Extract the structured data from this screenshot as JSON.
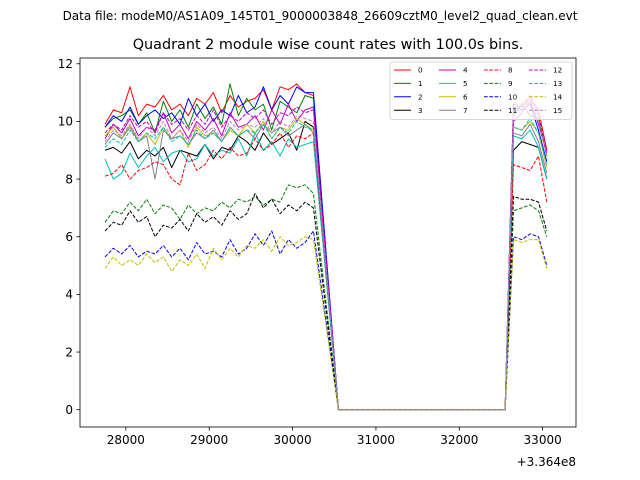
{
  "figure": {
    "suptitle": "Data file: modeM0/AS1A09_145T01_9000003848_26609cztM0_level2_quad_clean.evt"
  },
  "chart_data": {
    "type": "line",
    "title": "Quadrant 2 module wise count rates with 100.0s bins.",
    "xlabel": "",
    "ylabel": "",
    "x_offset_label": "+3.364e8",
    "x_offset": 336400000,
    "xlim": [
      27450,
      33400
    ],
    "ylim": [
      -0.6,
      12.2
    ],
    "xticks": [
      28000,
      29000,
      30000,
      31000,
      32000,
      33000
    ],
    "xtick_labels": [
      "28000",
      "29000",
      "30000",
      "31000",
      "32000",
      "33000"
    ],
    "yticks": [
      0,
      2,
      4,
      6,
      8,
      10,
      12
    ],
    "ytick_labels": [
      "0",
      "2",
      "4",
      "6",
      "8",
      "10",
      "12"
    ],
    "legend_position": "top-right",
    "legend_ncol": 4,
    "bin_size_s": 100,
    "x_start": 27750,
    "gap": {
      "start": 30550,
      "end": 32550,
      "value": 0
    },
    "series": [
      {
        "name": "0",
        "color": "#ff0000",
        "dash": "solid",
        "pre": [
          9.9,
          10.4,
          10.3,
          11.2,
          10.2,
          10.6,
          10.5,
          10.9,
          10.4,
          10.6,
          10.2,
          10.8,
          10.6,
          11.0,
          10.3,
          10.9,
          10.5,
          10.7,
          10.8,
          11.1,
          10.4,
          11.2,
          11.1,
          11.3,
          11.0,
          10.9
        ],
        "post": [
          10.6,
          10.5,
          10.8,
          10.4,
          9.0
        ]
      },
      {
        "name": "1",
        "color": "#008000",
        "dash": "solid",
        "pre": [
          9.8,
          10.1,
          10.2,
          10.4,
          9.9,
          10.3,
          9.6,
          10.7,
          10.0,
          10.4,
          9.8,
          10.6,
          10.1,
          10.5,
          9.9,
          11.3,
          10.2,
          10.8,
          10.4,
          10.6,
          9.7,
          10.7,
          10.5,
          10.3,
          10.9,
          10.8
        ],
        "post": [
          10.2,
          10.6,
          10.2,
          10.1,
          8.8
        ]
      },
      {
        "name": "2",
        "color": "#0000ff",
        "dash": "solid",
        "pre": [
          9.8,
          10.2,
          10.0,
          10.5,
          9.9,
          10.2,
          10.4,
          10.1,
          10.3,
          9.9,
          10.8,
          10.2,
          10.6,
          10.0,
          10.4,
          10.2,
          10.9,
          10.3,
          10.5,
          11.2,
          10.4,
          10.9,
          10.6,
          11.2,
          11.0,
          11.0
        ],
        "post": [
          10.5,
          10.4,
          10.6,
          9.7,
          8.6
        ]
      },
      {
        "name": "3",
        "color": "#000000",
        "dash": "solid",
        "pre": [
          9.0,
          9.1,
          8.9,
          9.3,
          8.7,
          9.0,
          8.8,
          9.1,
          8.4,
          9.0,
          8.9,
          8.8,
          9.2,
          8.7,
          9.1,
          9.0,
          9.5,
          9.3,
          9.0,
          9.6,
          9.2,
          9.4,
          9.6,
          9.0,
          10.0,
          9.8
        ],
        "post": [
          9.0,
          9.3,
          9.2,
          9.1,
          8.0
        ]
      },
      {
        "name": "4",
        "color": "#bf00bf",
        "dash": "solid",
        "pre": [
          9.4,
          9.9,
          9.6,
          10.1,
          9.5,
          9.8,
          9.7,
          10.3,
          9.6,
          9.9,
          9.4,
          10.0,
          9.7,
          10.1,
          9.5,
          10.3,
          9.8,
          9.9,
          10.2,
          9.7,
          10.4,
          9.9,
          10.6,
          10.0,
          10.4,
          10.5
        ],
        "post": [
          10.0,
          10.3,
          10.7,
          9.9,
          8.9
        ]
      },
      {
        "name": "5",
        "color": "#00bfbf",
        "dash": "solid",
        "pre": [
          8.7,
          8.0,
          8.2,
          8.9,
          8.4,
          8.8,
          9.1,
          8.6,
          8.9,
          9.0,
          8.6,
          8.7,
          9.2,
          8.8,
          9.0,
          8.9,
          9.4,
          8.8,
          9.6,
          9.0,
          9.3,
          8.8,
          9.4,
          9.1,
          9.2,
          9.3
        ],
        "post": [
          9.5,
          9.4,
          9.7,
          9.1,
          8.0
        ]
      },
      {
        "name": "6",
        "color": "#bfbf00",
        "dash": "solid",
        "pre": [
          9.5,
          9.8,
          9.4,
          9.9,
          9.3,
          9.6,
          9.2,
          9.8,
          9.4,
          9.7,
          9.1,
          9.8,
          9.5,
          9.6,
          9.3,
          9.7,
          9.5,
          9.9,
          9.6,
          10.0,
          9.4,
          9.8,
          9.7,
          10.1,
          9.9,
          9.7
        ],
        "post": [
          9.8,
          9.7,
          10.0,
          9.6,
          8.4
        ]
      },
      {
        "name": "7",
        "color": "#808080",
        "dash": "solid",
        "pre": [
          9.2,
          9.6,
          9.4,
          9.8,
          9.3,
          9.5,
          8.0,
          9.7,
          9.4,
          9.5,
          9.2,
          9.6,
          9.4,
          9.7,
          9.3,
          9.8,
          9.5,
          9.7,
          9.4,
          9.9,
          9.6,
          9.8,
          9.5,
          9.7,
          9.9,
          9.6
        ],
        "post": [
          9.6,
          9.5,
          9.9,
          9.3,
          8.2
        ]
      },
      {
        "name": "8",
        "color": "#ff0000",
        "dash": "dashed",
        "pre": [
          8.1,
          8.2,
          8.5,
          8.0,
          8.3,
          8.4,
          8.6,
          8.5,
          8.0,
          7.8,
          8.9,
          8.3,
          8.5,
          9.0,
          8.7,
          9.1,
          8.8,
          8.9,
          9.4,
          9.0,
          9.2,
          9.6,
          9.1,
          9.5,
          9.4,
          9.6
        ],
        "post": [
          8.5,
          8.4,
          8.3,
          8.8,
          7.2
        ]
      },
      {
        "name": "9",
        "color": "#008000",
        "dash": "dashed",
        "pre": [
          6.5,
          6.9,
          6.8,
          7.2,
          6.9,
          7.3,
          6.8,
          7.1,
          7.0,
          6.6,
          7.1,
          6.8,
          7.0,
          6.9,
          7.2,
          7.0,
          7.3,
          7.2,
          7.4,
          7.1,
          7.3,
          7.2,
          7.8,
          7.7,
          7.8,
          7.5
        ],
        "post": [
          6.9,
          7.0,
          7.1,
          6.9,
          6.0
        ]
      },
      {
        "name": "10",
        "color": "#0000ff",
        "dash": "dashed",
        "pre": [
          5.3,
          5.6,
          5.4,
          5.7,
          5.3,
          5.5,
          5.4,
          5.7,
          5.3,
          5.6,
          5.2,
          5.8,
          5.4,
          5.5,
          5.3,
          5.9,
          5.4,
          5.6,
          6.1,
          5.7,
          6.2,
          5.4,
          5.9,
          5.6,
          5.8,
          6.2
        ],
        "post": [
          6.0,
          5.9,
          6.1,
          6.0,
          5.0
        ]
      },
      {
        "name": "11",
        "color": "#000000",
        "dash": "dashed",
        "pre": [
          6.2,
          6.5,
          6.4,
          6.9,
          6.5,
          6.7,
          6.0,
          6.4,
          6.3,
          6.6,
          6.2,
          6.8,
          6.5,
          6.7,
          6.4,
          6.9,
          6.6,
          6.8,
          7.5,
          7.0,
          7.3,
          6.8,
          7.1,
          6.9,
          7.2,
          7.0
        ],
        "post": [
          7.4,
          7.3,
          7.3,
          7.2,
          6.2
        ]
      },
      {
        "name": "12",
        "color": "#bf00bf",
        "dash": "dashed",
        "pre": [
          9.6,
          9.9,
          9.7,
          10.2,
          9.8,
          10.0,
          9.6,
          10.3,
          9.9,
          10.1,
          9.7,
          10.2,
          9.9,
          10.4,
          9.8,
          10.2,
          10.0,
          10.3,
          10.1,
          10.4,
          9.9,
          10.3,
          10.2,
          10.5,
          10.3,
          10.4
        ],
        "post": [
          10.4,
          10.6,
          10.9,
          10.2,
          9.0
        ]
      },
      {
        "name": "13",
        "color": "#00bfbf",
        "dash": "dashed",
        "pre": [
          9.1,
          9.4,
          9.2,
          9.7,
          9.3,
          9.6,
          9.4,
          9.8,
          9.3,
          9.5,
          9.2,
          9.7,
          9.4,
          9.6,
          9.3,
          9.8,
          9.5,
          9.7,
          9.6,
          9.9,
          9.4,
          9.8,
          9.6,
          10.0,
          9.8,
          9.7
        ],
        "post": [
          9.8,
          9.7,
          10.1,
          9.6,
          8.5
        ]
      },
      {
        "name": "14",
        "color": "#bfbf00",
        "dash": "dashed",
        "pre": [
          4.9,
          5.3,
          5.0,
          5.2,
          5.0,
          5.4,
          5.1,
          5.3,
          4.8,
          5.2,
          5.0,
          5.4,
          4.9,
          5.6,
          5.2,
          5.6,
          5.3,
          5.7,
          5.6,
          5.9,
          5.5,
          6.0,
          5.7,
          5.8,
          6.0,
          5.9
        ],
        "post": [
          5.9,
          5.8,
          5.9,
          5.9,
          4.9
        ]
      },
      {
        "name": "15",
        "color": "#bf80bf",
        "dash": "dashed",
        "pre": [
          9.3,
          9.7,
          9.5,
          9.9,
          9.4,
          9.8,
          9.5,
          10.0,
          9.4,
          9.7,
          9.3,
          9.9,
          9.6,
          9.8,
          9.4,
          10.0,
          9.7,
          9.9,
          9.8,
          10.1,
          9.6,
          10.0,
          9.8,
          10.2,
          10.1,
          10.0
        ],
        "post": [
          10.3,
          10.4,
          10.8,
          10.0,
          8.8
        ]
      }
    ]
  }
}
